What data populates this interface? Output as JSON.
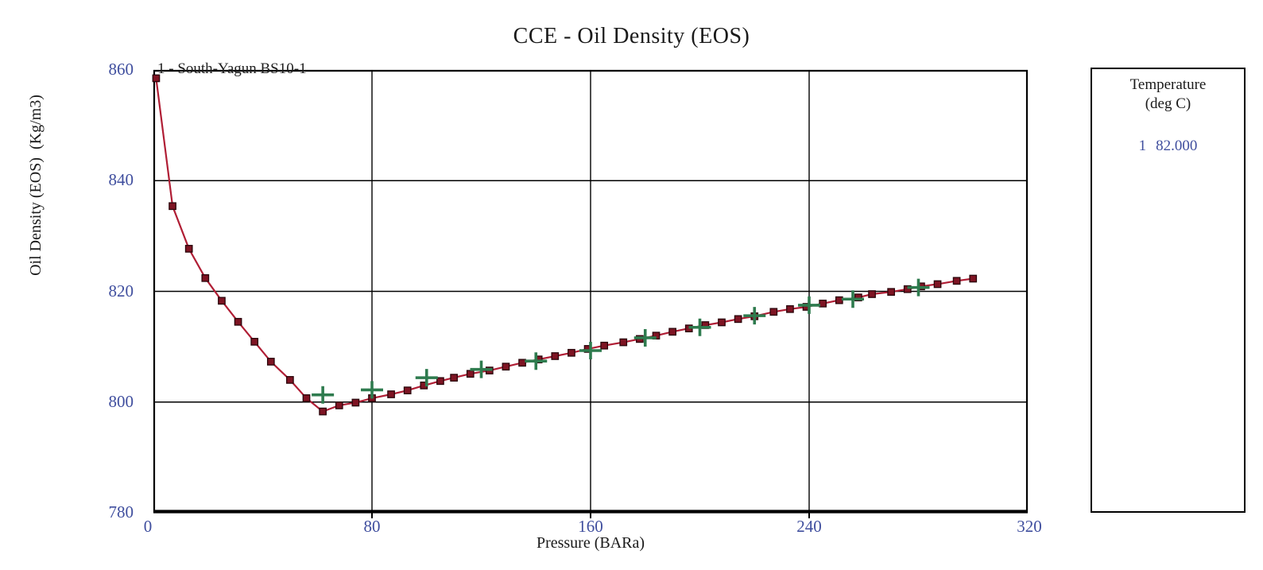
{
  "page": {
    "background": "#ffffff"
  },
  "chart": {
    "title": "CCE - Oil Density (EOS)",
    "series_label": "1 - South-Yagun BS10-1",
    "x_axis_label": "Pressure (BARa)",
    "y_axis_label": "Oil Density (EOS)  (Kg/m3)"
  },
  "legend": {
    "title_line1": "Temperature",
    "title_line2": "(deg C)",
    "entries": [
      {
        "index": "1",
        "value": "82.000"
      }
    ]
  },
  "colors": {
    "curve_line": "#b01e35",
    "curve_marker_fill": "#7e1423",
    "curve_marker_edge": "#2a050b",
    "experimental_marker": "#2e7b4e",
    "tick_label": "#3f4e9e",
    "axis_text": "#1a1a1a",
    "grid_line": "#000000"
  },
  "chart_data": {
    "type": "line",
    "title": "CCE - Oil Density (EOS)",
    "xlabel": "Pressure (BARa)",
    "ylabel": "Oil Density (EOS) (Kg/m3)",
    "xlim": [
      0,
      320
    ],
    "ylim": [
      780,
      860
    ],
    "x_ticks": [
      0,
      80,
      160,
      240,
      320
    ],
    "y_ticks": [
      860,
      840,
      820,
      800,
      780
    ],
    "grid": true,
    "legend_position": "right",
    "legend_title": "Temperature (deg C)",
    "legend_entries": [
      "1  82.000"
    ],
    "series": [
      {
        "name": "1 - South-Yagun BS10-1",
        "marker": "square",
        "line": true,
        "color": "#b01e35",
        "points": [
          [
            1,
            858.5
          ],
          [
            7,
            835.4
          ],
          [
            13,
            827.7
          ],
          [
            19,
            822.4
          ],
          [
            25,
            818.3
          ],
          [
            31,
            814.5
          ],
          [
            37,
            810.9
          ],
          [
            43,
            807.3
          ],
          [
            50,
            804.0
          ],
          [
            56,
            800.7
          ],
          [
            62,
            798.3
          ],
          [
            68,
            799.4
          ],
          [
            74,
            799.9
          ],
          [
            80,
            800.7
          ],
          [
            87,
            801.4
          ],
          [
            93,
            802.1
          ],
          [
            99,
            803.0
          ],
          [
            105,
            803.8
          ],
          [
            110,
            804.4
          ],
          [
            116,
            805.1
          ],
          [
            123,
            805.7
          ],
          [
            129,
            806.4
          ],
          [
            135,
            807.1
          ],
          [
            141,
            807.7
          ],
          [
            147,
            808.3
          ],
          [
            153,
            808.9
          ],
          [
            159,
            809.6
          ],
          [
            165,
            810.2
          ],
          [
            172,
            810.8
          ],
          [
            178,
            811.4
          ],
          [
            184,
            812.0
          ],
          [
            190,
            812.7
          ],
          [
            196,
            813.3
          ],
          [
            202,
            813.9
          ],
          [
            208,
            814.4
          ],
          [
            214,
            815.0
          ],
          [
            220,
            815.5
          ],
          [
            227,
            816.3
          ],
          [
            233,
            816.8
          ],
          [
            239,
            817.2
          ],
          [
            245,
            817.8
          ],
          [
            251,
            818.4
          ],
          [
            258,
            818.9
          ],
          [
            263,
            819.5
          ],
          [
            270,
            819.9
          ],
          [
            276,
            820.4
          ],
          [
            281,
            820.9
          ],
          [
            287,
            821.3
          ],
          [
            294,
            821.9
          ],
          [
            300,
            822.3
          ]
        ]
      },
      {
        "name": "unlabeled experimental points",
        "marker": "plus",
        "line": false,
        "color": "#2e7b4e",
        "points": [
          [
            62,
            801.3
          ],
          [
            80,
            802.2
          ],
          [
            100,
            804.4
          ],
          [
            120,
            805.9
          ],
          [
            140,
            807.4
          ],
          [
            160,
            809.3
          ],
          [
            180,
            811.6
          ],
          [
            200,
            813.5
          ],
          [
            220,
            815.6
          ],
          [
            240,
            817.5
          ],
          [
            256,
            818.6
          ],
          [
            280,
            820.7
          ]
        ]
      }
    ]
  }
}
